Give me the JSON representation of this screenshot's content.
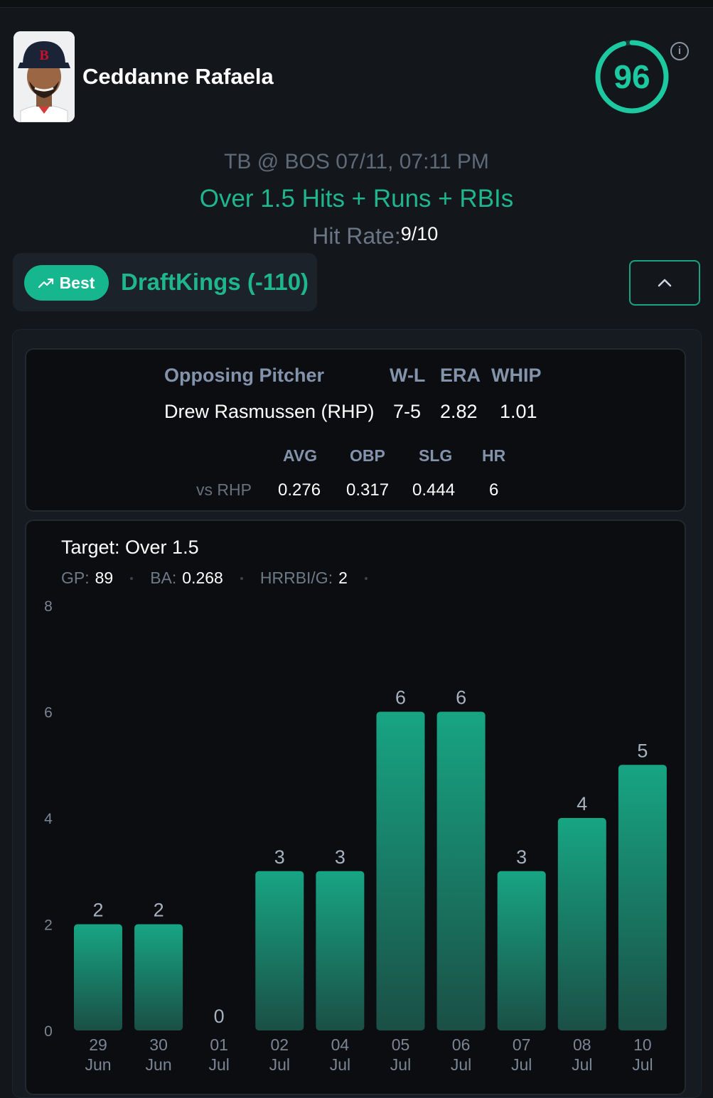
{
  "player": {
    "name": "Ceddanne Rafaela",
    "score": "96"
  },
  "game": {
    "matchup": "TB @ BOS 07/11, 07:11 PM"
  },
  "prop": {
    "label": "Over 1.5 Hits + Runs + RBIs"
  },
  "hit_rate": {
    "label": "Hit Rate:",
    "value": "9/10"
  },
  "book": {
    "badge": "Best",
    "name": "DraftKings (-110)"
  },
  "pitcher": {
    "col_title": "Opposing Pitcher",
    "col_wl": "W-L",
    "col_era": "ERA",
    "col_whip": "WHIP",
    "name": "Drew Rasmussen (RHP)",
    "wl": "7-5",
    "era": "2.82",
    "whip": "1.01"
  },
  "split": {
    "label": "vs RHP",
    "col_avg": "AVG",
    "col_obp": "OBP",
    "col_slg": "SLG",
    "col_hr": "HR",
    "avg": "0.276",
    "obp": "0.317",
    "slg": "0.444",
    "hr": "6"
  },
  "target": {
    "label": "Target: Over 1.5"
  },
  "meta": {
    "gp_label": "GP:",
    "gp": "89",
    "ba_label": "BA:",
    "ba": "0.268",
    "hrrbi_label": "HRRBI/G:",
    "hrrbi": "2"
  },
  "colors": {
    "accent": "#1cc9a0",
    "bar_top": "#17a583",
    "bar_bottom": "#1a4f46",
    "axis_text": "#7a8595"
  },
  "chart_data": {
    "type": "bar",
    "categories": [
      [
        "29",
        "Jun"
      ],
      [
        "30",
        "Jun"
      ],
      [
        "01",
        "Jul"
      ],
      [
        "02",
        "Jul"
      ],
      [
        "04",
        "Jul"
      ],
      [
        "05",
        "Jul"
      ],
      [
        "06",
        "Jul"
      ],
      [
        "07",
        "Jul"
      ],
      [
        "08",
        "Jul"
      ],
      [
        "10",
        "Jul"
      ]
    ],
    "values": [
      2,
      2,
      0,
      3,
      3,
      6,
      6,
      3,
      4,
      5
    ],
    "yticks": [
      0,
      2,
      4,
      6,
      8
    ],
    "ylim": [
      0,
      8
    ],
    "title": "",
    "xlabel": "",
    "ylabel": ""
  }
}
